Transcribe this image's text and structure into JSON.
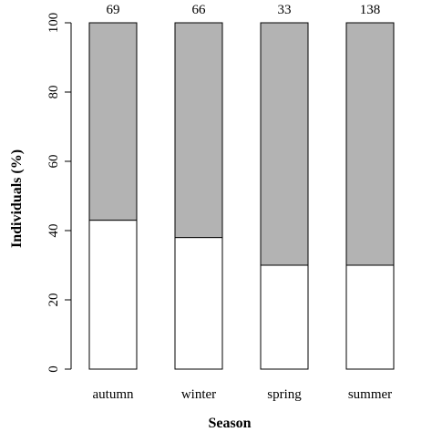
{
  "chart_data": {
    "type": "bar",
    "stacked": true,
    "categories": [
      "autumn",
      "winter",
      "spring",
      "summer"
    ],
    "top_labels": [
      "69",
      "66",
      "33",
      "138"
    ],
    "series": [
      {
        "color": "#ffffff",
        "values": [
          43,
          38,
          30,
          30
        ]
      },
      {
        "color": "#b3b3b3",
        "values": [
          57,
          62,
          70,
          70
        ]
      }
    ],
    "ylabel": "Individuals (%)",
    "xlabel": "Season",
    "ylim": [
      0,
      100
    ],
    "yticks": [
      0,
      20,
      40,
      60,
      80,
      100
    ],
    "grid": false
  }
}
